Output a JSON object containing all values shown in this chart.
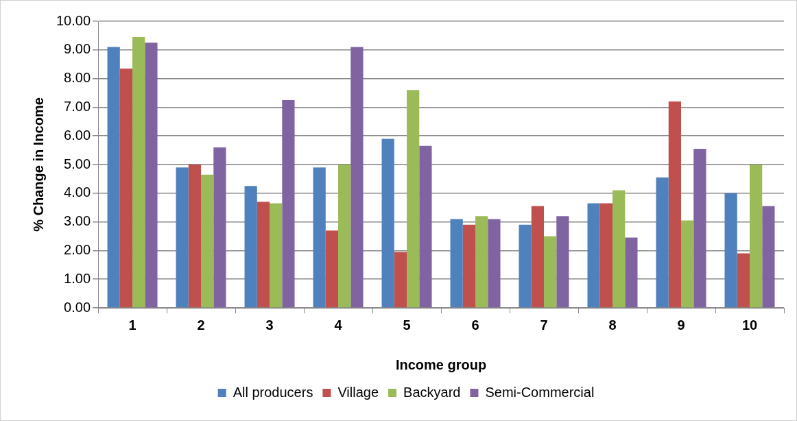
{
  "chart_data": {
    "type": "bar",
    "xlabel": "Income group",
    "ylabel": "% Change in Income",
    "categories": [
      "1",
      "2",
      "3",
      "4",
      "5",
      "6",
      "7",
      "8",
      "9",
      "10"
    ],
    "series": [
      {
        "name": "All producers",
        "color": "#4f81bd",
        "values": [
          9.1,
          4.9,
          4.25,
          4.9,
          5.9,
          3.1,
          2.9,
          3.65,
          4.55,
          4.0
        ]
      },
      {
        "name": "Village",
        "color": "#c0504d",
        "values": [
          8.35,
          5.0,
          3.7,
          2.7,
          1.95,
          2.9,
          3.55,
          3.65,
          7.2,
          1.9
        ]
      },
      {
        "name": "Backyard",
        "color": "#9bbb59",
        "values": [
          9.45,
          4.65,
          3.65,
          5.0,
          7.6,
          3.2,
          2.5,
          4.1,
          3.05,
          5.0
        ]
      },
      {
        "name": "Semi-Commercial",
        "color": "#8064a2",
        "values": [
          9.25,
          5.6,
          7.25,
          9.1,
          5.65,
          3.1,
          3.2,
          2.45,
          5.55,
          3.55
        ]
      }
    ],
    "ylim": [
      0,
      10
    ],
    "yticks": [
      {
        "value": 0,
        "label": "0.00"
      },
      {
        "value": 1,
        "label": "1.00"
      },
      {
        "value": 2,
        "label": "2.00"
      },
      {
        "value": 3,
        "label": "3.00"
      },
      {
        "value": 4,
        "label": "4.00"
      },
      {
        "value": 5,
        "label": "5.00"
      },
      {
        "value": 6,
        "label": "6.00"
      },
      {
        "value": 7,
        "label": "7.00"
      },
      {
        "value": 8,
        "label": "8.00"
      },
      {
        "value": 9,
        "label": "9.00"
      },
      {
        "value": 10,
        "label": "10.00"
      }
    ],
    "grid": "y",
    "legend": "bottom"
  }
}
